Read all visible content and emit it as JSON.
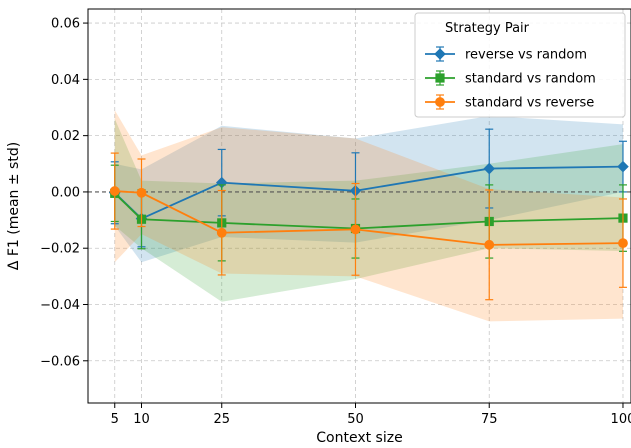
{
  "chart_data": {
    "type": "line",
    "xlabel": "Context size",
    "ylabel": "Δ F1 (mean ± std)",
    "x": [
      5,
      10,
      25,
      50,
      75,
      100
    ],
    "xticks": [
      "5",
      "10",
      "25",
      "50",
      "75",
      "100"
    ],
    "xlim": [
      0,
      101.5
    ],
    "ylim": [
      -0.075,
      0.065
    ],
    "yticks": [
      0.06,
      0.04,
      0.02,
      0.0,
      -0.02,
      -0.04,
      -0.06
    ],
    "ytick_labels": [
      "0.06",
      "0.04",
      "0.02",
      "0.00",
      "−0.02",
      "−0.04",
      "−0.06"
    ],
    "grid": true,
    "reference_line": 0.0,
    "legend": {
      "title": "Strategy Pair",
      "placement": "top-right"
    },
    "series": [
      {
        "name": "reverse vs random",
        "color": "#1f77b4",
        "marker": "diamond",
        "mean": [
          -0.0003,
          -0.0095,
          0.0033,
          0.0004,
          0.0083,
          0.009
        ],
        "err": [
          0.011,
          0.01,
          0.0118,
          0.0135,
          0.014,
          0.009
        ],
        "band_lower": [
          -0.012,
          -0.025,
          -0.016,
          -0.018,
          -0.01,
          0.0
        ],
        "band_upper": [
          0.01,
          0.008,
          0.0235,
          0.019,
          0.027,
          0.024
        ]
      },
      {
        "name": "standard vs random",
        "color": "#2ca02c",
        "marker": "square",
        "mean": [
          -0.0005,
          -0.0097,
          -0.011,
          -0.013,
          -0.0105,
          -0.0093
        ],
        "err": [
          0.01,
          0.0105,
          0.0135,
          0.0105,
          0.013,
          0.0118
        ],
        "band_lower": [
          -0.012,
          -0.02,
          -0.039,
          -0.031,
          -0.02,
          -0.021
        ],
        "band_upper": [
          0.026,
          0.004,
          0.003,
          0.004,
          0.01,
          0.017
        ]
      },
      {
        "name": "standard vs reverse",
        "color": "#ff7f0e",
        "marker": "circle",
        "mean": [
          0.0003,
          -0.0003,
          -0.0145,
          -0.0133,
          -0.0188,
          -0.0182
        ],
        "err": [
          0.0135,
          0.012,
          0.015,
          0.0163,
          0.0195,
          0.0157
        ],
        "band_lower": [
          -0.025,
          -0.015,
          -0.029,
          -0.03,
          -0.046,
          -0.045
        ],
        "band_upper": [
          0.029,
          0.013,
          0.023,
          0.019,
          0.001,
          -0.002
        ]
      }
    ]
  }
}
